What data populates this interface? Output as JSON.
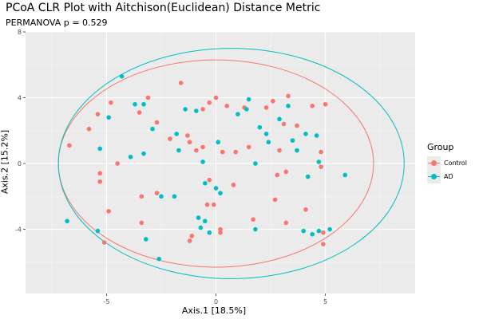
{
  "chart_data": {
    "type": "scatter",
    "title": "PCoA CLR Plot with Aitchison(Euclidean) Distance Metric",
    "subtitle": "PERMANOVA p = 0.529",
    "xlabel": "Axis.1  [18.5%]",
    "ylabel": "Axis.2  [15.2%]",
    "xlim": [
      -8.7,
      9.1
    ],
    "ylim": [
      -7.9,
      8.0
    ],
    "xticks": [
      -5,
      0,
      5
    ],
    "xtick_labels": [
      "-5",
      "0",
      "5"
    ],
    "yticks": [
      -4,
      0,
      4,
      8
    ],
    "ytick_labels": [
      "-4",
      "0",
      "4",
      "8"
    ],
    "grid": true,
    "legend_title": "Group",
    "legend_position": "right",
    "series": [
      {
        "name": "Control",
        "color": "#F8766D",
        "ellipse": {
          "cx": 0.0,
          "cy": 0.0,
          "rx": 7.2,
          "ry": 6.3
        },
        "points": [
          [
            -6.7,
            1.1
          ],
          [
            -5.8,
            2.1
          ],
          [
            -5.4,
            3.0
          ],
          [
            -5.3,
            -0.6
          ],
          [
            -5.3,
            -1.1
          ],
          [
            -4.9,
            -2.9
          ],
          [
            -5.1,
            -4.8
          ],
          [
            -4.8,
            3.7
          ],
          [
            -4.5,
            0.0
          ],
          [
            -3.5,
            3.1
          ],
          [
            -3.4,
            -2.0
          ],
          [
            -3.4,
            -3.6
          ],
          [
            -3.1,
            4.0
          ],
          [
            -2.7,
            2.5
          ],
          [
            -2.7,
            -1.8
          ],
          [
            -2.1,
            1.5
          ],
          [
            -1.6,
            4.9
          ],
          [
            -1.3,
            1.7
          ],
          [
            -1.2,
            1.3
          ],
          [
            -1.2,
            -4.7
          ],
          [
            -1.1,
            -4.4
          ],
          [
            -0.9,
            0.8
          ],
          [
            -0.6,
            3.3
          ],
          [
            -0.6,
            1.0
          ],
          [
            -0.3,
            3.7
          ],
          [
            -0.3,
            -1.0
          ],
          [
            -0.4,
            -2.5
          ],
          [
            0.0,
            4.0
          ],
          [
            0.2,
            -4.0
          ],
          [
            0.2,
            -4.2
          ],
          [
            0.3,
            0.7
          ],
          [
            -0.1,
            -2.5
          ],
          [
            0.5,
            3.5
          ],
          [
            0.9,
            0.7
          ],
          [
            0.8,
            -1.3
          ],
          [
            1.3,
            3.4
          ],
          [
            1.5,
            1.0
          ],
          [
            1.7,
            -3.4
          ],
          [
            2.3,
            3.4
          ],
          [
            2.6,
            3.8
          ],
          [
            2.9,
            0.8
          ],
          [
            3.3,
            4.1
          ],
          [
            3.5,
            1.4
          ],
          [
            2.8,
            -0.7
          ],
          [
            3.1,
            2.4
          ],
          [
            3.2,
            -0.5
          ],
          [
            2.7,
            -2.2
          ],
          [
            3.2,
            -3.6
          ],
          [
            3.7,
            2.3
          ],
          [
            4.1,
            -2.8
          ],
          [
            4.4,
            3.5
          ],
          [
            4.8,
            0.7
          ],
          [
            4.8,
            -0.2
          ],
          [
            4.9,
            -4.9
          ],
          [
            5.0,
            3.6
          ],
          [
            4.9,
            -4.2
          ]
        ]
      },
      {
        "name": "AD",
        "color": "#00BFC4",
        "ellipse": {
          "cx": 0.7,
          "cy": 0.0,
          "rx": 7.9,
          "ry": 7.0
        },
        "points": [
          [
            -6.8,
            -3.5
          ],
          [
            -5.4,
            -4.1
          ],
          [
            -5.3,
            0.9
          ],
          [
            -4.9,
            2.8
          ],
          [
            -4.3,
            5.3
          ],
          [
            -3.9,
            0.4
          ],
          [
            -3.7,
            3.6
          ],
          [
            -3.3,
            3.6
          ],
          [
            -3.3,
            0.6
          ],
          [
            -3.2,
            -4.6
          ],
          [
            -2.9,
            2.1
          ],
          [
            -2.5,
            -2.0
          ],
          [
            -2.6,
            -5.8
          ],
          [
            -1.9,
            -2.0
          ],
          [
            -1.8,
            1.8
          ],
          [
            -1.7,
            0.8
          ],
          [
            -1.4,
            3.3
          ],
          [
            -0.9,
            3.2
          ],
          [
            -0.6,
            0.1
          ],
          [
            -0.5,
            -1.2
          ],
          [
            -0.5,
            -3.5
          ],
          [
            -0.3,
            -4.2
          ],
          [
            -0.7,
            -3.9
          ],
          [
            -0.8,
            -3.3
          ],
          [
            0.0,
            -1.5
          ],
          [
            0.1,
            1.3
          ],
          [
            0.2,
            -1.8
          ],
          [
            1.0,
            3.0
          ],
          [
            1.4,
            3.3
          ],
          [
            1.5,
            3.9
          ],
          [
            1.8,
            0.0
          ],
          [
            1.8,
            -4.0
          ],
          [
            2.0,
            2.2
          ],
          [
            2.3,
            1.8
          ],
          [
            2.4,
            1.3
          ],
          [
            2.9,
            2.7
          ],
          [
            3.3,
            3.5
          ],
          [
            3.5,
            1.4
          ],
          [
            3.7,
            0.8
          ],
          [
            4.0,
            -4.1
          ],
          [
            4.1,
            1.8
          ],
          [
            4.2,
            -0.8
          ],
          [
            4.4,
            -4.3
          ],
          [
            4.6,
            1.7
          ],
          [
            4.7,
            0.1
          ],
          [
            4.7,
            -4.1
          ],
          [
            5.2,
            -4.0
          ],
          [
            5.9,
            -0.7
          ]
        ]
      }
    ]
  }
}
